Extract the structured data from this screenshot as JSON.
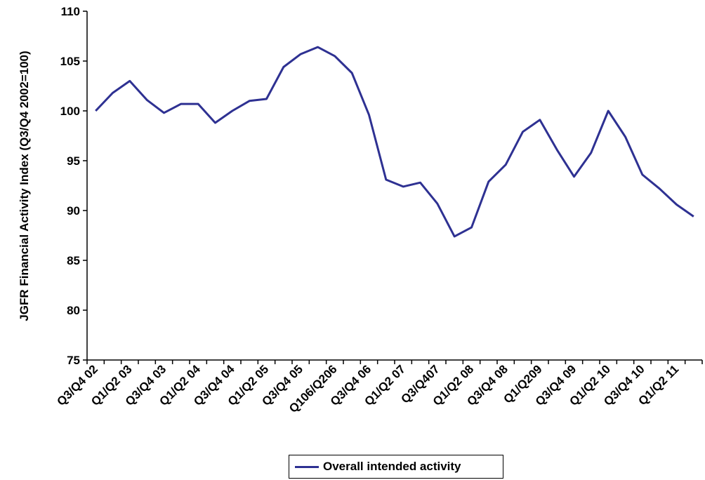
{
  "chart_data": {
    "type": "line",
    "ylabel": "JGFR Financial Activity Index (Q3/Q4 2002=100)",
    "xlabel": "",
    "ylim": [
      75,
      110
    ],
    "yticks": [
      75,
      80,
      85,
      90,
      95,
      100,
      105,
      110
    ],
    "grid": false,
    "legend_position": "bottom-center",
    "x_tick_labels": [
      "Q3/Q4 02",
      "Q1/Q2 03",
      "Q3/Q4 03",
      "Q1/Q2 04",
      "Q3/Q4 04",
      "Q1/Q2 05",
      "Q3/Q4 05",
      "Q106/Q206",
      "Q3/Q4 06",
      "Q1/Q2 07",
      "Q3/Q407",
      "Q1/Q2 08",
      "Q3/Q4 08",
      "Q1/Q209",
      "Q3/Q4 09",
      "Q1/Q2 10",
      "Q3/Q4 10",
      "Q1/Q2 11"
    ],
    "series": [
      {
        "name": "Overall intended activity",
        "color": "#2e3192",
        "values": [
          100.0,
          101.8,
          103.0,
          101.1,
          99.8,
          100.7,
          100.7,
          98.8,
          100.0,
          101.0,
          101.2,
          104.4,
          105.7,
          106.4,
          105.5,
          103.8,
          99.6,
          93.1,
          92.4,
          92.8,
          90.7,
          87.4,
          88.3,
          92.9,
          94.6,
          97.9,
          99.1,
          96.1,
          93.4,
          95.8,
          100.0,
          97.4,
          93.6,
          92.2,
          90.6,
          89.4
        ]
      }
    ]
  }
}
